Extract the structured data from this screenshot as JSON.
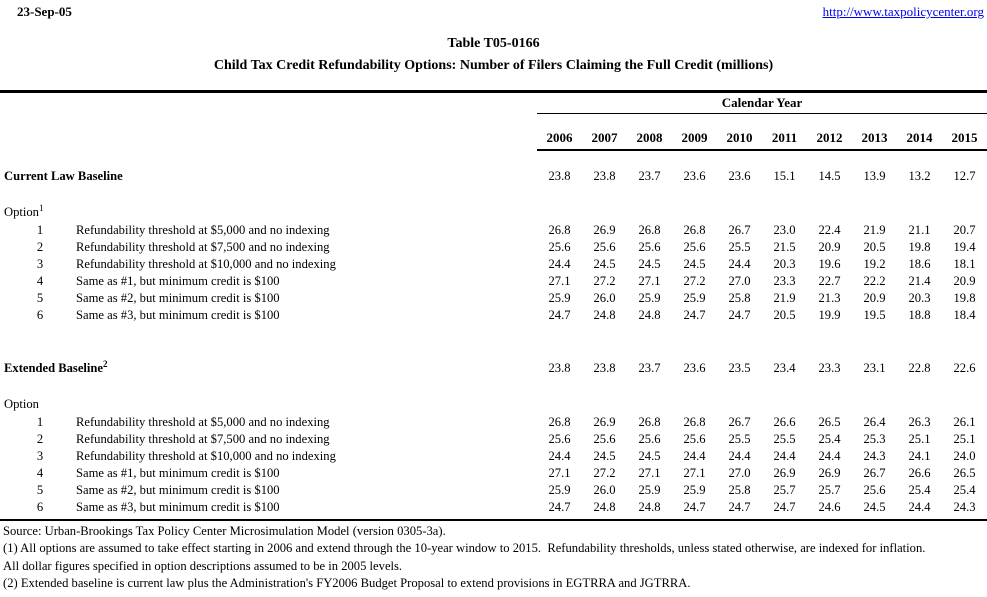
{
  "header": {
    "date": "23-Sep-05",
    "url": "http://www.taxpolicycenter.org"
  },
  "title": {
    "line1": "Table T05-0166",
    "line2": "Child Tax Credit Refundability Options: Number of Filers Claiming the Full Credit (millions)"
  },
  "table": {
    "group_header": "Calendar Year",
    "years": [
      "2006",
      "2007",
      "2008",
      "2009",
      "2010",
      "2011",
      "2012",
      "2013",
      "2014",
      "2015"
    ],
    "sections": [
      {
        "baseline_label": "Current Law Baseline",
        "baseline_sup": "",
        "baseline_values": [
          "23.8",
          "23.8",
          "23.7",
          "23.6",
          "23.6",
          "15.1",
          "14.5",
          "13.9",
          "13.2",
          "12.7"
        ],
        "option_label": "Option",
        "option_sup": "1",
        "options": [
          {
            "num": "1",
            "desc": "Refundability threshold at $5,000 and no indexing",
            "values": [
              "26.8",
              "26.9",
              "26.8",
              "26.8",
              "26.7",
              "23.0",
              "22.4",
              "21.9",
              "21.1",
              "20.7"
            ]
          },
          {
            "num": "2",
            "desc": "Refundability threshold at $7,500 and no indexing",
            "values": [
              "25.6",
              "25.6",
              "25.6",
              "25.6",
              "25.5",
              "21.5",
              "20.9",
              "20.5",
              "19.8",
              "19.4"
            ]
          },
          {
            "num": "3",
            "desc": "Refundability threshold at $10,000 and no indexing",
            "values": [
              "24.4",
              "24.5",
              "24.5",
              "24.5",
              "24.4",
              "20.3",
              "19.6",
              "19.2",
              "18.6",
              "18.1"
            ]
          },
          {
            "num": "4",
            "desc": "Same as #1, but minimum credit is $100",
            "values": [
              "27.1",
              "27.2",
              "27.1",
              "27.2",
              "27.0",
              "23.3",
              "22.7",
              "22.2",
              "21.4",
              "20.9"
            ]
          },
          {
            "num": "5",
            "desc": "Same as #2, but minimum credit is $100",
            "values": [
              "25.9",
              "26.0",
              "25.9",
              "25.9",
              "25.8",
              "21.9",
              "21.3",
              "20.9",
              "20.3",
              "19.8"
            ]
          },
          {
            "num": "6",
            "desc": "Same as #3, but minimum credit is $100",
            "values": [
              "24.7",
              "24.8",
              "24.8",
              "24.7",
              "24.7",
              "20.5",
              "19.9",
              "19.5",
              "18.8",
              "18.4"
            ]
          }
        ]
      },
      {
        "baseline_label": "Extended Baseline",
        "baseline_sup": "2",
        "baseline_values": [
          "23.8",
          "23.8",
          "23.7",
          "23.6",
          "23.5",
          "23.4",
          "23.3",
          "23.1",
          "22.8",
          "22.6"
        ],
        "option_label": "Option",
        "option_sup": "",
        "options": [
          {
            "num": "1",
            "desc": "Refundability threshold at $5,000 and no indexing",
            "values": [
              "26.8",
              "26.9",
              "26.8",
              "26.8",
              "26.7",
              "26.6",
              "26.5",
              "26.4",
              "26.3",
              "26.1"
            ]
          },
          {
            "num": "2",
            "desc": "Refundability threshold at $7,500 and no indexing",
            "values": [
              "25.6",
              "25.6",
              "25.6",
              "25.6",
              "25.5",
              "25.5",
              "25.4",
              "25.3",
              "25.1",
              "25.1"
            ]
          },
          {
            "num": "3",
            "desc": "Refundability threshold at $10,000 and no indexing",
            "values": [
              "24.4",
              "24.5",
              "24.5",
              "24.4",
              "24.4",
              "24.4",
              "24.4",
              "24.3",
              "24.1",
              "24.0"
            ]
          },
          {
            "num": "4",
            "desc": "Same as #1, but minimum credit is $100",
            "values": [
              "27.1",
              "27.2",
              "27.1",
              "27.1",
              "27.0",
              "26.9",
              "26.9",
              "26.7",
              "26.6",
              "26.5"
            ]
          },
          {
            "num": "5",
            "desc": "Same as #2, but minimum credit is $100",
            "values": [
              "25.9",
              "26.0",
              "25.9",
              "25.9",
              "25.8",
              "25.7",
              "25.7",
              "25.6",
              "25.4",
              "25.4"
            ]
          },
          {
            "num": "6",
            "desc": "Same as #3, but minimum credit is $100",
            "values": [
              "24.7",
              "24.8",
              "24.8",
              "24.7",
              "24.7",
              "24.7",
              "24.6",
              "24.5",
              "24.4",
              "24.3"
            ]
          }
        ]
      }
    ]
  },
  "notes": {
    "source": "Source: Urban-Brookings Tax Policy Center Microsimulation Model (version 0305-3a).",
    "note1": "(1) All options are assumed to take effect starting in 2006 and extend through the 10-year window to 2015.  Refundability thresholds, unless stated otherwise, are indexed for inflation.",
    "note1b": "All dollar figures specified in option descriptions assumed to be in 2005 levels.",
    "note2": "(2) Extended baseline is current law plus the Administration's FY2006 Budget Proposal to extend provisions in EGTRRA and JGTRRA."
  }
}
